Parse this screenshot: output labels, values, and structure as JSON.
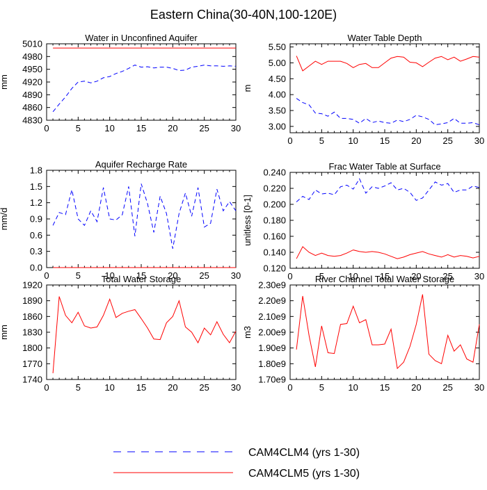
{
  "figure_title": "Eastern China(30-40N,100-120E)",
  "legend": {
    "items": [
      {
        "label": "CAM4CLM4 (yrs 1-30)",
        "color": "#0000ff",
        "style": "dashed"
      },
      {
        "label": "CAM4CLM5 (yrs 1-30)",
        "color": "#ff0000",
        "style": "solid"
      }
    ]
  },
  "colors": {
    "CAM4CLM4": "#0000ff",
    "CAM4CLM5": "#ff0000"
  },
  "chart_data": [
    {
      "type": "line",
      "title": "Water in Unconfined Aquifer",
      "xlabel": "",
      "ylabel": "mm",
      "xlim": [
        0,
        30
      ],
      "ylim": [
        4830,
        5010
      ],
      "xticks": [
        0,
        5,
        10,
        15,
        20,
        25,
        30
      ],
      "yticks": [
        4830,
        4860,
        4890,
        4920,
        4950,
        4980,
        5010
      ],
      "yticklabels": [
        "4830",
        "4860",
        "4890",
        "4920",
        "4950",
        "4980",
        "5010"
      ],
      "x": [
        1,
        2,
        3,
        4,
        5,
        6,
        7,
        8,
        9,
        10,
        11,
        12,
        13,
        14,
        15,
        16,
        17,
        18,
        19,
        20,
        21,
        22,
        23,
        24,
        25,
        26,
        27,
        28,
        29,
        30
      ],
      "series": [
        {
          "name": "CAM4CLM4 (yrs 1-30)",
          "color": "#0000ff",
          "style": "dashed",
          "values": [
            4850,
            4868,
            4885,
            4905,
            4920,
            4922,
            4918,
            4922,
            4930,
            4933,
            4940,
            4945,
            4952,
            4960,
            4955,
            4956,
            4953,
            4955,
            4955,
            4952,
            4947,
            4948,
            4955,
            4957,
            4960,
            4958,
            4958,
            4957,
            4958,
            4957
          ]
        },
        {
          "name": "CAM4CLM5 (yrs 1-30)",
          "color": "#ff0000",
          "style": "solid",
          "values": [
            5000,
            5000,
            5000,
            5000,
            5000,
            5000,
            5000,
            5000,
            5000,
            5000,
            5000,
            5000,
            5000,
            5000,
            5000,
            5000,
            5000,
            5000,
            5000,
            5000,
            5000,
            5000,
            5000,
            5000,
            5000,
            5000,
            5000,
            5000,
            5000,
            5000
          ]
        }
      ]
    },
    {
      "type": "line",
      "title": "Water Table Depth",
      "xlabel": "",
      "ylabel": "m",
      "xlim": [
        0,
        30
      ],
      "ylim": [
        2.8,
        5.6
      ],
      "xticks": [
        0,
        5,
        10,
        15,
        20,
        25,
        30
      ],
      "yticks": [
        3.0,
        3.5,
        4.0,
        4.5,
        5.0,
        5.5
      ],
      "yticklabels": [
        "3.00",
        "3.50",
        "4.00",
        "4.50",
        "5.00",
        "5.50"
      ],
      "x": [
        1,
        2,
        3,
        4,
        5,
        6,
        7,
        8,
        9,
        10,
        11,
        12,
        13,
        14,
        15,
        16,
        17,
        18,
        19,
        20,
        21,
        22,
        23,
        24,
        25,
        26,
        27,
        28,
        29,
        30
      ],
      "series": [
        {
          "name": "CAM4CLM4 (yrs 1-30)",
          "color": "#0000ff",
          "style": "dashed",
          "values": [
            3.88,
            3.75,
            3.68,
            3.42,
            3.4,
            3.32,
            3.45,
            3.25,
            3.25,
            3.22,
            3.1,
            3.25,
            3.12,
            3.17,
            3.12,
            3.1,
            3.2,
            3.15,
            3.22,
            3.35,
            3.3,
            3.22,
            3.05,
            3.08,
            3.12,
            3.25,
            3.1,
            3.1,
            3.12,
            3.05
          ]
        },
        {
          "name": "CAM4CLM5 (yrs 1-30)",
          "color": "#ff0000",
          "style": "solid",
          "values": [
            5.22,
            4.75,
            4.9,
            5.05,
            4.95,
            5.05,
            5.05,
            5.05,
            4.98,
            4.85,
            4.95,
            4.98,
            4.85,
            4.85,
            5.0,
            5.15,
            5.2,
            5.18,
            5.02,
            5.0,
            4.88,
            5.02,
            5.15,
            5.2,
            5.1,
            5.18,
            5.05,
            5.12,
            5.2,
            5.18
          ]
        }
      ]
    },
    {
      "type": "line",
      "title": "Aquifer Recharge Rate",
      "xlabel": "",
      "ylabel": "mm/d",
      "xlim": [
        0,
        30
      ],
      "ylim": [
        0,
        1.8
      ],
      "xticks": [
        0,
        5,
        10,
        15,
        20,
        25,
        30
      ],
      "yticks": [
        0.0,
        0.3,
        0.6,
        0.9,
        1.2,
        1.5,
        1.8
      ],
      "yticklabels": [
        "0.0",
        "0.3",
        "0.6",
        "0.9",
        "1.2",
        "1.5",
        "1.8"
      ],
      "x": [
        1,
        2,
        3,
        4,
        5,
        6,
        7,
        8,
        9,
        10,
        11,
        12,
        13,
        14,
        15,
        16,
        17,
        18,
        19,
        20,
        21,
        22,
        23,
        24,
        25,
        26,
        27,
        28,
        29,
        30
      ],
      "series": [
        {
          "name": "CAM4CLM4 (yrs 1-30)",
          "color": "#0000ff",
          "style": "dashed",
          "values": [
            0.78,
            1.02,
            0.98,
            1.44,
            0.9,
            0.78,
            1.05,
            0.85,
            1.48,
            0.9,
            0.88,
            0.98,
            1.5,
            0.58,
            1.55,
            1.18,
            0.65,
            1.32,
            1.0,
            0.35,
            1.0,
            1.38,
            0.95,
            1.48,
            0.75,
            0.82,
            1.45,
            1.05,
            1.22,
            1.05
          ]
        },
        {
          "name": "CAM4CLM5 (yrs 1-30)",
          "color": "#ff0000",
          "style": "solid",
          "values": [
            0,
            0,
            0,
            0,
            0,
            0,
            0,
            0,
            0,
            0,
            0,
            0,
            0,
            0,
            0,
            0,
            0,
            0,
            0,
            0,
            0,
            0,
            0,
            0,
            0,
            0,
            0,
            0,
            0,
            0
          ]
        }
      ]
    },
    {
      "type": "line",
      "title": "Frac Water Table at Surface",
      "xlabel": "",
      "ylabel": "unitless [0-1]",
      "xlim": [
        0,
        30
      ],
      "ylim": [
        0.12,
        0.24
      ],
      "xticks": [
        0,
        5,
        10,
        15,
        20,
        25,
        30
      ],
      "yticks": [
        0.12,
        0.14,
        0.16,
        0.18,
        0.2,
        0.22,
        0.24
      ],
      "yticklabels": [
        "0.120",
        "0.140",
        "0.160",
        "0.180",
        "0.200",
        "0.220",
        "0.240"
      ],
      "x": [
        1,
        2,
        3,
        4,
        5,
        6,
        7,
        8,
        9,
        10,
        11,
        12,
        13,
        14,
        15,
        16,
        17,
        18,
        19,
        20,
        21,
        22,
        23,
        24,
        25,
        26,
        27,
        28,
        29,
        30
      ],
      "series": [
        {
          "name": "CAM4CLM4 (yrs 1-30)",
          "color": "#0000ff",
          "style": "dashed",
          "values": [
            0.203,
            0.21,
            0.206,
            0.218,
            0.213,
            0.214,
            0.212,
            0.222,
            0.224,
            0.219,
            0.232,
            0.214,
            0.222,
            0.22,
            0.223,
            0.227,
            0.218,
            0.22,
            0.215,
            0.205,
            0.208,
            0.218,
            0.228,
            0.224,
            0.226,
            0.215,
            0.218,
            0.218,
            0.223,
            0.221
          ]
        },
        {
          "name": "CAM4CLM5 (yrs 1-30)",
          "color": "#ff0000",
          "style": "solid",
          "values": [
            0.132,
            0.147,
            0.14,
            0.136,
            0.139,
            0.136,
            0.135,
            0.136,
            0.139,
            0.143,
            0.141,
            0.14,
            0.141,
            0.14,
            0.138,
            0.135,
            0.132,
            0.134,
            0.137,
            0.139,
            0.141,
            0.138,
            0.136,
            0.134,
            0.137,
            0.134,
            0.136,
            0.135,
            0.133,
            0.135
          ]
        }
      ]
    },
    {
      "type": "line",
      "title": "Total Water Storage",
      "xlabel": "",
      "ylabel": "mm",
      "xlim": [
        0,
        30
      ],
      "ylim": [
        1740,
        1920
      ],
      "xticks": [
        0,
        5,
        10,
        15,
        20,
        25,
        30
      ],
      "yticks": [
        1740,
        1770,
        1800,
        1830,
        1860,
        1890,
        1920
      ],
      "yticklabels": [
        "1740",
        "1770",
        "1800",
        "1830",
        "1860",
        "1890",
        "1920"
      ],
      "x": [
        1,
        2,
        3,
        4,
        5,
        6,
        7,
        8,
        9,
        10,
        11,
        12,
        13,
        14,
        15,
        16,
        17,
        18,
        19,
        20,
        21,
        22,
        23,
        24,
        25,
        26,
        27,
        28,
        29,
        30
      ],
      "series": [
        {
          "name": "CAM4CLM5 (yrs 1-30)",
          "color": "#ff0000",
          "style": "solid",
          "values": [
            1752,
            1898,
            1862,
            1848,
            1868,
            1842,
            1838,
            1840,
            1862,
            1893,
            1858,
            1866,
            1870,
            1873,
            1856,
            1838,
            1817,
            1816,
            1848,
            1860,
            1890,
            1840,
            1830,
            1810,
            1838,
            1825,
            1850,
            1826,
            1810,
            1832
          ]
        }
      ]
    },
    {
      "type": "line",
      "title": "River Channel Total Water Storage",
      "xlabel": "",
      "ylabel": "m3",
      "xlim": [
        0,
        30
      ],
      "ylim": [
        1700000000.0,
        2300000000.0
      ],
      "xticks": [
        0,
        5,
        10,
        15,
        20,
        25,
        30
      ],
      "yticks": [
        1700000000.0,
        1800000000.0,
        1900000000.0,
        2000000000.0,
        2100000000.0,
        2200000000.0,
        2300000000.0
      ],
      "yticklabels": [
        "1.70e9",
        "1.80e9",
        "1.90e9",
        "2.00e9",
        "2.10e9",
        "2.20e9",
        "2.30e9"
      ],
      "x": [
        1,
        2,
        3,
        4,
        5,
        6,
        7,
        8,
        9,
        10,
        11,
        12,
        13,
        14,
        15,
        16,
        17,
        18,
        19,
        20,
        21,
        22,
        23,
        24,
        25,
        26,
        27,
        28,
        29,
        30
      ],
      "series": [
        {
          "name": "CAM4CLM5 (yrs 1-30)",
          "color": "#ff0000",
          "style": "solid",
          "values": [
            1890000000.0,
            2230000000.0,
            1980000000.0,
            1780000000.0,
            2040000000.0,
            1870000000.0,
            1865000000.0,
            2050000000.0,
            2055000000.0,
            2165000000.0,
            2060000000.0,
            2080000000.0,
            1920000000.0,
            1920000000.0,
            1925000000.0,
            2020000000.0,
            1770000000.0,
            1810000000.0,
            1910000000.0,
            2050000000.0,
            2240000000.0,
            1860000000.0,
            1820000000.0,
            1800000000.0,
            1980000000.0,
            1880000000.0,
            1920000000.0,
            1830000000.0,
            1810000000.0,
            2050000000.0
          ]
        }
      ]
    }
  ]
}
